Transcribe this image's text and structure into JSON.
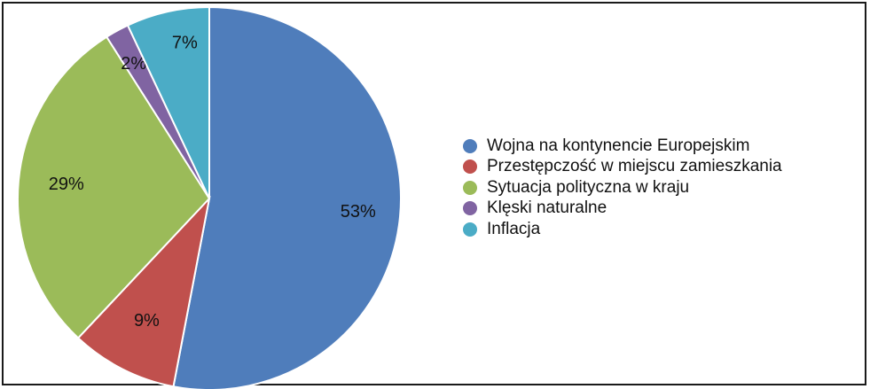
{
  "chart_data": {
    "type": "pie",
    "title": "",
    "categories": [
      "Wojna na kontynencie Europejskim",
      "Przestępczość w miejscu zamieszkania",
      "Sytuacja polityczna w kraju",
      "Klęski naturalne",
      "Inflacja"
    ],
    "values": [
      53,
      9,
      29,
      2,
      7
    ],
    "value_labels": [
      "53%",
      "9%",
      "29%",
      "2%",
      "7%"
    ],
    "colors": [
      "#4f7dbb",
      "#c0504d",
      "#9bbb59",
      "#8064a2",
      "#4bacc6"
    ],
    "legend_position": "right",
    "start_angle": "top",
    "direction": "clockwise"
  }
}
